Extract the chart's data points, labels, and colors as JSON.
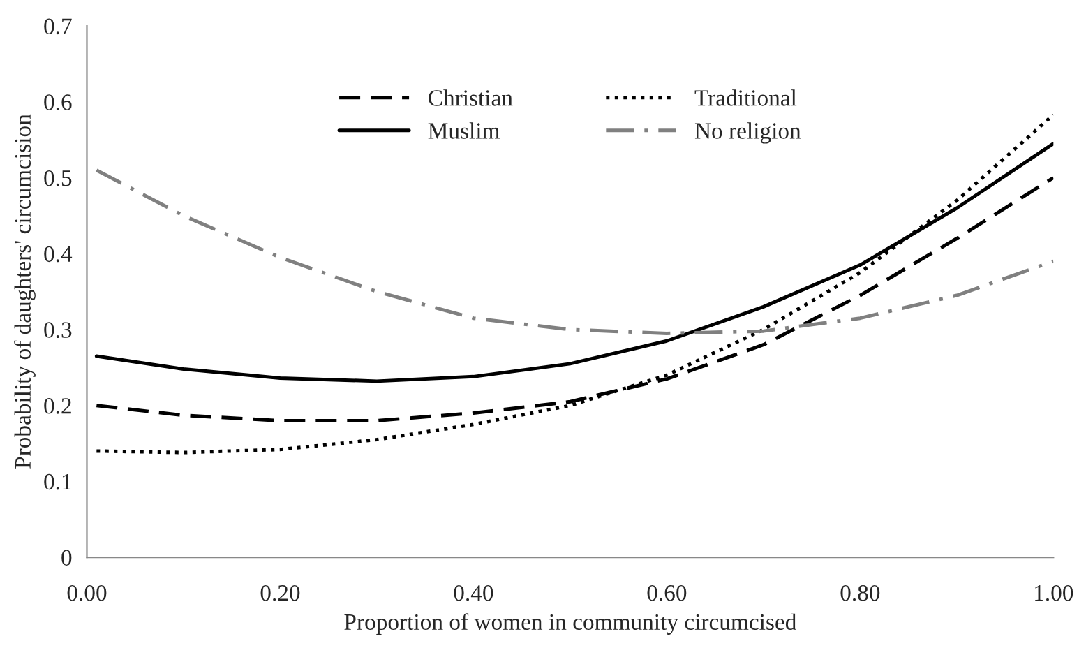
{
  "chart_data": {
    "type": "line",
    "xlabel": "Proportion of women in community circumcised",
    "ylabel": "Probability of daughters' circumcision",
    "x": [
      0.01,
      0.1,
      0.2,
      0.3,
      0.4,
      0.5,
      0.6,
      0.7,
      0.8,
      0.9,
      1.0
    ],
    "series": [
      {
        "name": "Christian",
        "color": "#000000",
        "line_style": "dashed",
        "values": [
          0.2,
          0.187,
          0.18,
          0.18,
          0.19,
          0.205,
          0.235,
          0.28,
          0.345,
          0.42,
          0.5
        ]
      },
      {
        "name": "Muslim",
        "color": "#000000",
        "line_style": "solid",
        "values": [
          0.265,
          0.248,
          0.236,
          0.232,
          0.238,
          0.255,
          0.285,
          0.33,
          0.385,
          0.46,
          0.545
        ]
      },
      {
        "name": "Traditional",
        "color": "#000000",
        "line_style": "dotted",
        "values": [
          0.14,
          0.138,
          0.142,
          0.155,
          0.175,
          0.2,
          0.24,
          0.3,
          0.375,
          0.47,
          0.583
        ]
      },
      {
        "name": "No religion",
        "color": "#808080",
        "line_style": "dashdot",
        "values": [
          0.51,
          0.45,
          0.395,
          0.35,
          0.315,
          0.3,
          0.295,
          0.298,
          0.315,
          0.345,
          0.39
        ]
      }
    ],
    "xlim": [
      0,
      1.0
    ],
    "xticks": [
      {
        "value": 0,
        "label": "0.00"
      },
      {
        "value": 0.2,
        "label": "0.20"
      },
      {
        "value": 0.4,
        "label": "0.40"
      },
      {
        "value": 0.6,
        "label": "0.60"
      },
      {
        "value": 0.8,
        "label": "0.80"
      },
      {
        "value": 1.0,
        "label": "1.00"
      }
    ],
    "ylim": [
      0,
      0.7
    ],
    "yticks": [
      0,
      0.1,
      0.2,
      0.3,
      0.4,
      0.5,
      0.6,
      0.7
    ],
    "grid": false,
    "legend": "top"
  }
}
